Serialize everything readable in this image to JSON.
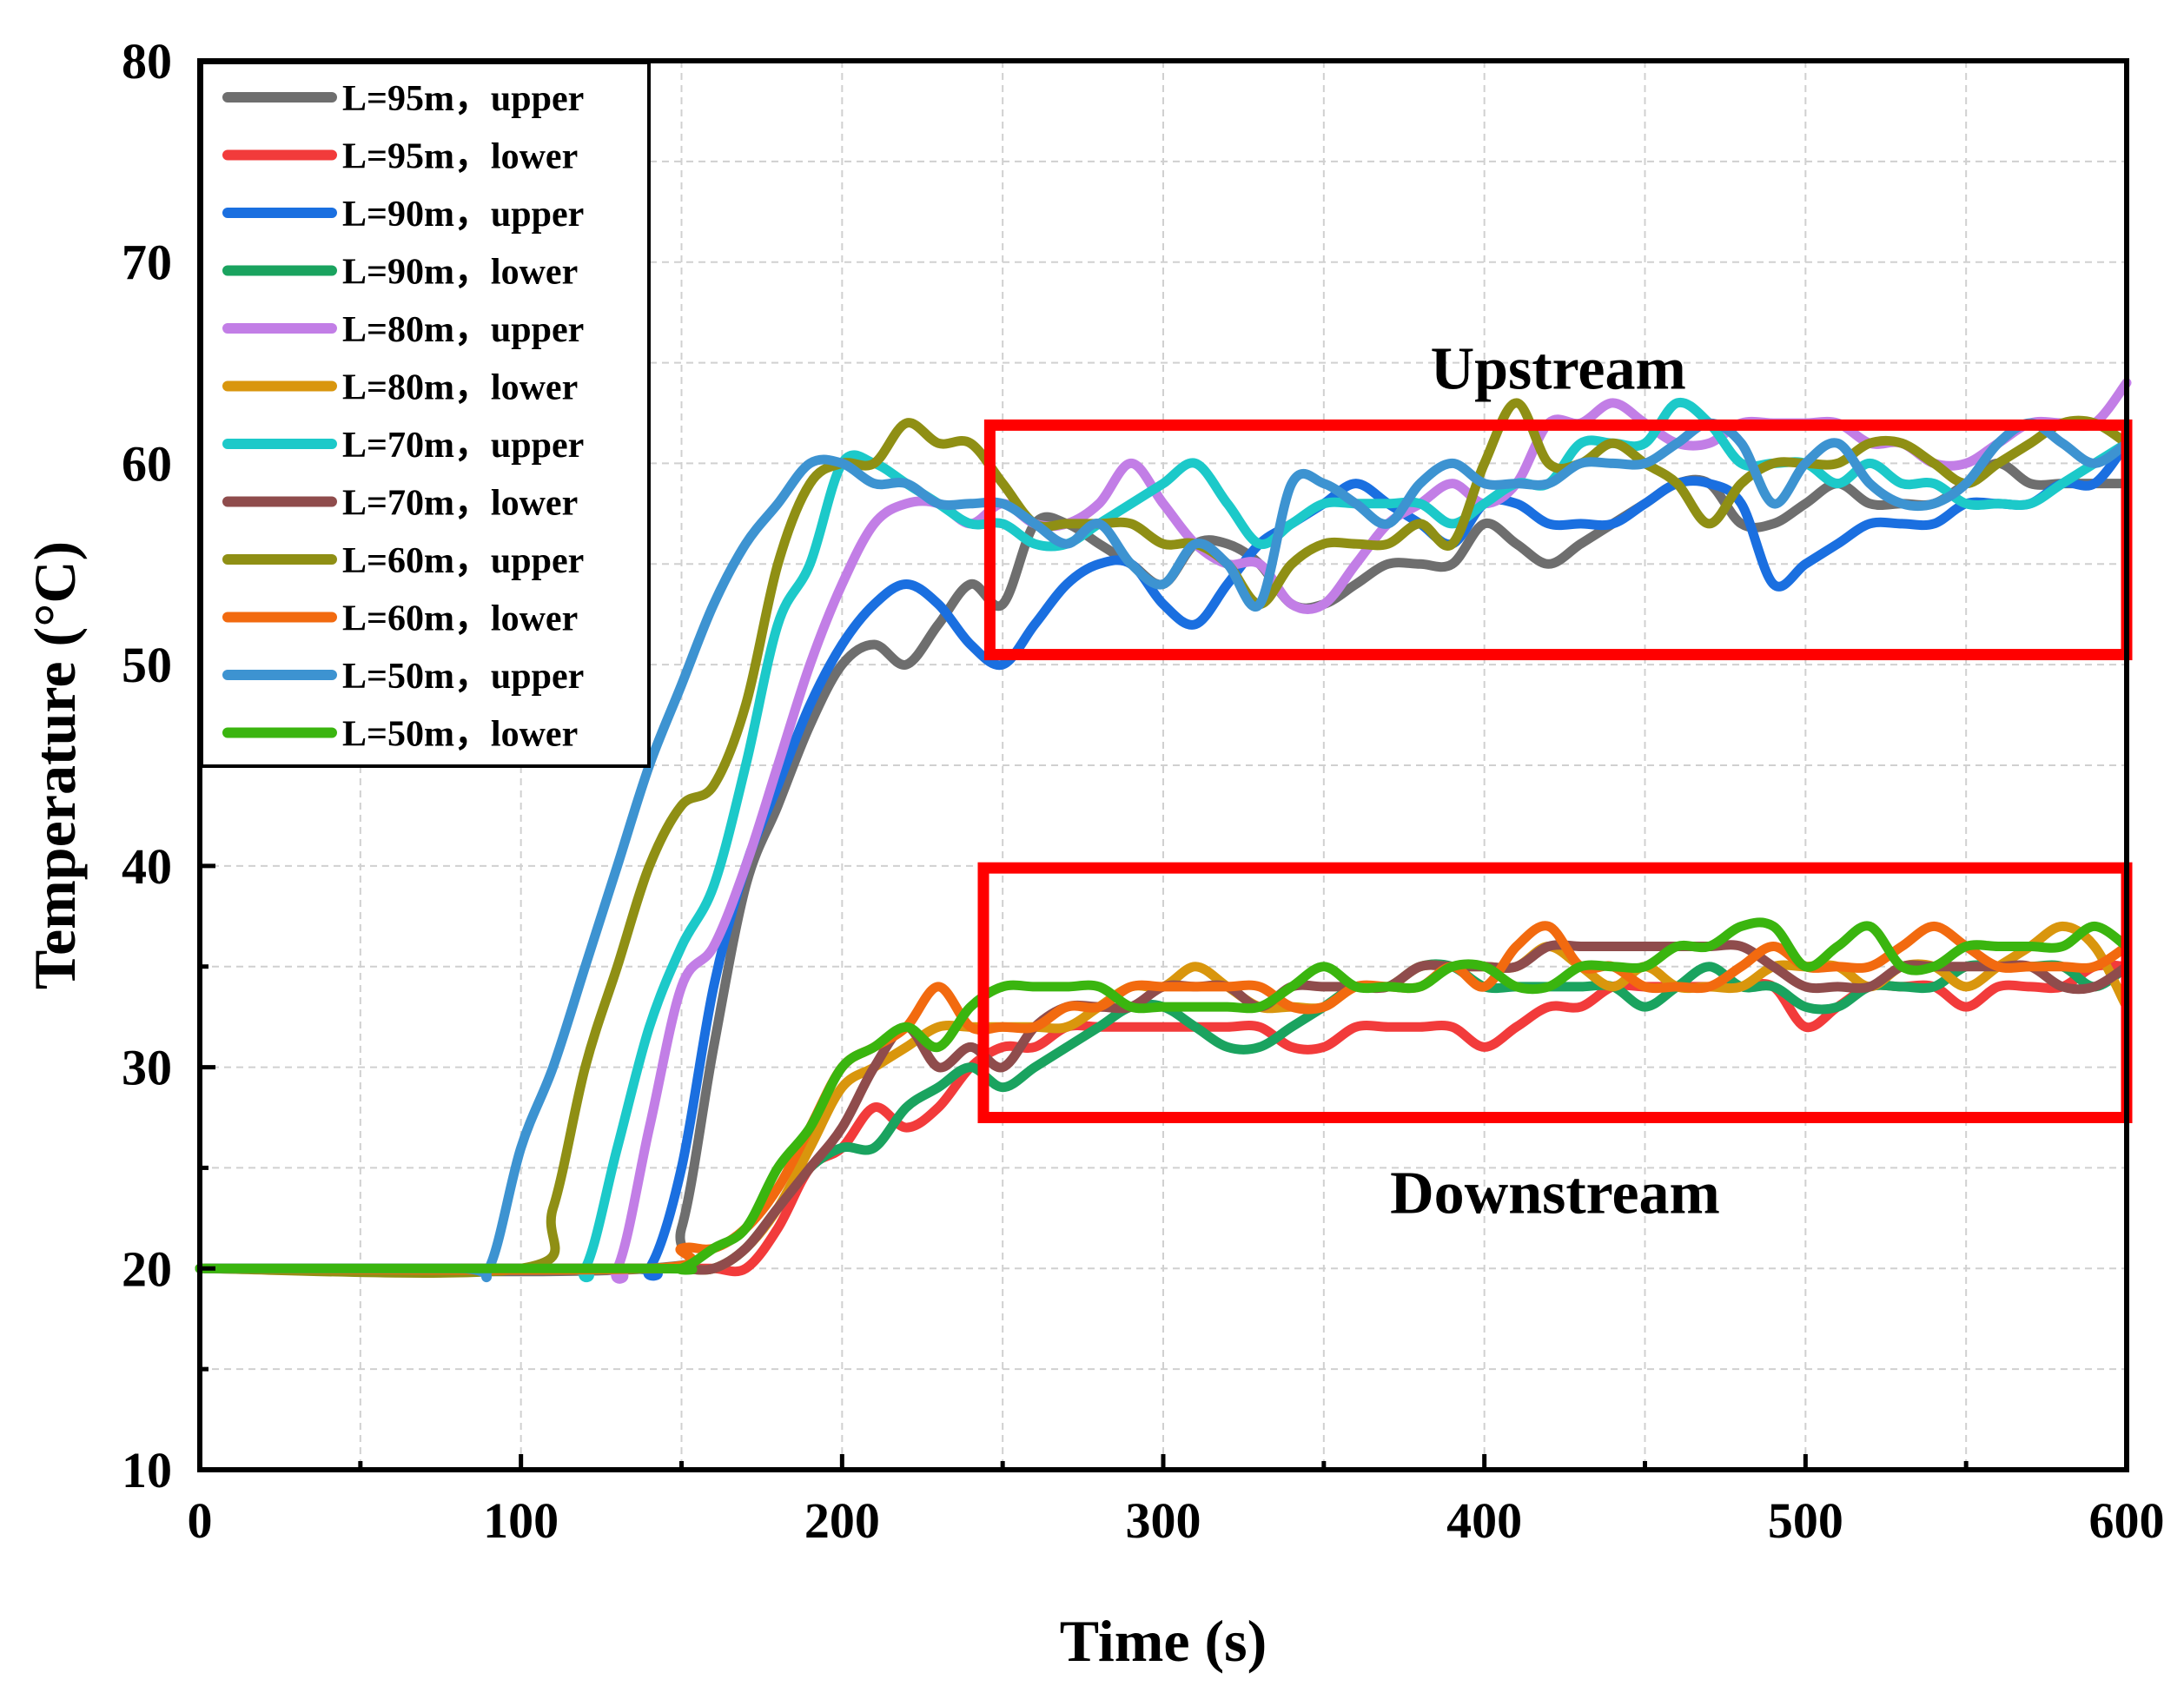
{
  "chart_data": {
    "type": "line",
    "title": "",
    "xlabel": "Time (s)",
    "ylabel": "Temperature (°C)",
    "xlim": [
      0,
      600
    ],
    "ylim": [
      10,
      80
    ],
    "xticks": [
      0,
      100,
      200,
      300,
      400,
      500,
      600
    ],
    "yticks": [
      10,
      20,
      30,
      40,
      50,
      60,
      70,
      80
    ],
    "grid": true,
    "legend_position": "top-left",
    "annotations": [
      {
        "label": "Upstream",
        "box": {
          "x": [
            246,
            600
          ],
          "y": [
            50.5,
            61.9
          ]
        }
      },
      {
        "label": "Downstream",
        "box": {
          "x": [
            244,
            600
          ],
          "y": [
            27.5,
            39.9
          ]
        }
      }
    ],
    "series": [
      {
        "name": "L=95m，upper",
        "color": "#6e6e6e",
        "x": [
          0,
          140,
          150,
          160,
          170,
          180,
          190,
          200,
          210,
          220,
          230,
          240,
          250,
          260,
          270,
          280,
          290,
          300,
          310,
          320,
          330,
          340,
          350,
          360,
          370,
          380,
          390,
          400,
          410,
          420,
          430,
          440,
          450,
          460,
          470,
          480,
          490,
          500,
          510,
          520,
          530,
          540,
          550,
          560,
          570,
          580,
          590,
          600
        ],
        "y": [
          20,
          20,
          22,
          31,
          39,
          43,
          47,
          50,
          51,
          50,
          52,
          54,
          53,
          57,
          57,
          56,
          55,
          54,
          56,
          56,
          55,
          53,
          53,
          54,
          55,
          55,
          55,
          57,
          56,
          55,
          56,
          57,
          58,
          59,
          59,
          57,
          57,
          58,
          59,
          58,
          58,
          58,
          59,
          60,
          59,
          59,
          59,
          59
        ]
      },
      {
        "name": "L=95m，lower",
        "color": "#f23b3b",
        "x": [
          0,
          140,
          150,
          160,
          170,
          180,
          190,
          200,
          210,
          220,
          230,
          240,
          250,
          260,
          270,
          280,
          290,
          300,
          310,
          320,
          330,
          340,
          350,
          360,
          370,
          380,
          390,
          400,
          410,
          420,
          430,
          440,
          450,
          460,
          470,
          480,
          490,
          500,
          510,
          520,
          530,
          540,
          550,
          560,
          570,
          580,
          590,
          600
        ],
        "y": [
          20,
          20,
          20,
          20,
          20,
          22,
          25,
          26,
          28,
          27,
          28,
          30,
          31,
          31,
          32,
          32,
          32,
          32,
          32,
          32,
          32,
          31,
          31,
          32,
          32,
          32,
          32,
          31,
          32,
          33,
          33,
          34,
          34,
          34,
          34,
          34,
          34,
          32,
          33,
          34,
          34,
          34,
          33,
          34,
          34,
          34,
          35,
          35
        ]
      },
      {
        "name": "L=90m，upper",
        "color": "#1a6fe0",
        "x": [
          0,
          130,
          140,
          150,
          160,
          170,
          180,
          190,
          200,
          210,
          220,
          230,
          240,
          250,
          260,
          270,
          280,
          290,
          300,
          310,
          320,
          330,
          340,
          350,
          360,
          370,
          380,
          390,
          400,
          410,
          420,
          430,
          440,
          450,
          460,
          470,
          480,
          490,
          500,
          510,
          520,
          530,
          540,
          550,
          560,
          570,
          580,
          590,
          600
        ],
        "y": [
          20,
          20,
          20,
          25,
          34,
          40,
          44,
          48,
          51,
          53,
          54,
          53,
          51,
          50,
          52,
          54,
          55,
          55,
          53,
          52,
          54,
          56,
          57,
          58,
          59,
          58,
          57,
          56,
          58,
          58,
          57,
          57,
          57,
          58,
          59,
          59,
          58,
          54,
          55,
          56,
          57,
          57,
          57,
          58,
          58,
          58,
          59,
          59,
          61
        ]
      },
      {
        "name": "L=90m，lower",
        "color": "#1aa35f",
        "x": [
          0,
          140,
          150,
          160,
          170,
          180,
          190,
          200,
          210,
          220,
          230,
          240,
          250,
          260,
          270,
          280,
          290,
          300,
          310,
          320,
          330,
          340,
          350,
          360,
          370,
          380,
          390,
          400,
          410,
          420,
          430,
          440,
          450,
          460,
          470,
          480,
          490,
          500,
          510,
          520,
          530,
          540,
          550,
          560,
          570,
          580,
          590,
          600
        ],
        "y": [
          20,
          20,
          20,
          20,
          21,
          23,
          25,
          26,
          26,
          28,
          29,
          30,
          29,
          30,
          31,
          32,
          33,
          33,
          32,
          31,
          31,
          32,
          33,
          34,
          34,
          35,
          35,
          34,
          34,
          34,
          34,
          34,
          33,
          34,
          35,
          34,
          34,
          33,
          33,
          34,
          34,
          34,
          35,
          35,
          35,
          35,
          34,
          35
        ]
      },
      {
        "name": "L=80m，upper",
        "color": "#c27ee6",
        "x": [
          0,
          120,
          130,
          140,
          150,
          160,
          170,
          180,
          190,
          200,
          210,
          220,
          230,
          240,
          250,
          260,
          270,
          280,
          290,
          300,
          310,
          320,
          330,
          340,
          350,
          360,
          370,
          380,
          390,
          400,
          410,
          420,
          430,
          440,
          450,
          460,
          470,
          480,
          490,
          500,
          510,
          520,
          530,
          540,
          550,
          560,
          570,
          580,
          590,
          600
        ],
        "y": [
          20,
          20,
          20,
          27,
          34,
          36,
          40,
          45,
          50,
          54,
          57,
          58,
          58,
          57,
          58,
          57,
          57,
          58,
          60,
          58,
          56,
          55,
          55,
          53,
          53,
          55,
          57,
          58,
          59,
          58,
          59,
          62,
          62,
          63,
          62,
          61,
          61,
          62,
          62,
          62,
          62,
          61,
          61,
          60,
          60,
          61,
          62,
          62,
          62,
          64
        ]
      },
      {
        "name": "L=80m，lower",
        "color": "#d9960d",
        "x": [
          0,
          140,
          150,
          160,
          170,
          180,
          190,
          200,
          210,
          220,
          230,
          240,
          250,
          260,
          270,
          280,
          290,
          300,
          310,
          320,
          330,
          340,
          350,
          360,
          370,
          380,
          390,
          400,
          410,
          420,
          430,
          440,
          450,
          460,
          470,
          480,
          490,
          500,
          510,
          520,
          530,
          540,
          550,
          560,
          570,
          580,
          590,
          600
        ],
        "y": [
          20,
          20,
          20,
          20,
          21,
          23,
          26,
          29,
          30,
          31,
          32,
          32,
          32,
          32,
          32,
          33,
          34,
          34,
          35,
          34,
          33,
          33,
          33,
          34,
          34,
          35,
          35,
          35,
          35,
          36,
          35,
          34,
          35,
          34,
          34,
          34,
          35,
          35,
          35,
          34,
          35,
          35,
          34,
          35,
          36,
          37,
          36,
          33
        ]
      },
      {
        "name": "L=70m，upper",
        "color": "#1cc9c9",
        "x": [
          0,
          110,
          120,
          130,
          140,
          150,
          160,
          170,
          180,
          190,
          200,
          210,
          220,
          230,
          240,
          250,
          260,
          270,
          280,
          290,
          300,
          310,
          320,
          330,
          340,
          350,
          360,
          370,
          380,
          390,
          400,
          410,
          420,
          430,
          440,
          450,
          460,
          470,
          480,
          490,
          500,
          510,
          520,
          530,
          540,
          550,
          560,
          570,
          580,
          590,
          600
        ],
        "y": [
          20,
          20,
          20,
          26,
          32,
          36,
          39,
          45,
          52,
          55,
          60,
          60,
          59,
          58,
          57,
          57,
          56,
          56,
          57,
          58,
          59,
          60,
          58,
          56,
          57,
          58,
          58,
          58,
          58,
          57,
          58,
          59,
          59,
          61,
          61,
          61,
          63,
          62,
          60,
          60,
          60,
          59,
          60,
          59,
          59,
          58,
          58,
          58,
          59,
          60,
          61
        ]
      },
      {
        "name": "L=70m，lower",
        "color": "#8f4c4c",
        "x": [
          0,
          140,
          150,
          160,
          170,
          180,
          190,
          200,
          210,
          220,
          230,
          240,
          250,
          260,
          270,
          280,
          290,
          300,
          310,
          320,
          330,
          340,
          350,
          360,
          370,
          380,
          390,
          400,
          410,
          420,
          430,
          440,
          450,
          460,
          470,
          480,
          490,
          500,
          510,
          520,
          530,
          540,
          550,
          560,
          570,
          580,
          590,
          600
        ],
        "y": [
          20,
          20,
          20,
          20,
          21,
          23,
          25,
          27,
          30,
          32,
          30,
          31,
          30,
          32,
          33,
          33,
          33,
          34,
          34,
          34,
          33,
          34,
          34,
          34,
          34,
          35,
          35,
          35,
          35,
          36,
          36,
          36,
          36,
          36,
          36,
          36,
          35,
          34,
          34,
          34,
          35,
          35,
          35,
          35,
          35,
          34,
          34,
          35
        ]
      },
      {
        "name": "L=60m，upper",
        "color": "#8f8f14",
        "x": [
          0,
          100,
          110,
          120,
          130,
          140,
          150,
          160,
          170,
          180,
          190,
          200,
          210,
          220,
          230,
          240,
          250,
          260,
          270,
          280,
          290,
          300,
          310,
          320,
          330,
          340,
          350,
          360,
          370,
          380,
          390,
          400,
          410,
          420,
          430,
          440,
          450,
          460,
          470,
          480,
          490,
          500,
          510,
          520,
          530,
          540,
          550,
          560,
          570,
          580,
          590,
          600
        ],
        "y": [
          20,
          20,
          23,
          30,
          35,
          40,
          43,
          44,
          48,
          55,
          59,
          60,
          60,
          62,
          61,
          61,
          59,
          57,
          57,
          57,
          57,
          56,
          56,
          55,
          53,
          55,
          56,
          56,
          56,
          57,
          56,
          60,
          63,
          60,
          60,
          61,
          60,
          59,
          57,
          59,
          60,
          60,
          60,
          61,
          61,
          60,
          59,
          60,
          61,
          62,
          62,
          61
        ]
      },
      {
        "name": "L=60m，lower",
        "color": "#f26a0f",
        "x": [
          0,
          140,
          150,
          160,
          170,
          180,
          190,
          200,
          210,
          220,
          230,
          240,
          250,
          260,
          270,
          280,
          290,
          300,
          310,
          320,
          330,
          340,
          350,
          360,
          370,
          380,
          390,
          400,
          410,
          420,
          430,
          440,
          450,
          460,
          470,
          480,
          490,
          500,
          510,
          520,
          530,
          540,
          550,
          560,
          570,
          580,
          590,
          600
        ],
        "y": [
          20,
          20,
          21,
          21,
          22,
          24,
          27,
          30,
          31,
          32,
          34,
          32,
          32,
          32,
          33,
          33,
          34,
          34,
          34,
          34,
          34,
          33,
          33,
          34,
          34,
          34,
          35,
          34,
          36,
          37,
          35,
          35,
          34,
          34,
          34,
          35,
          36,
          35,
          35,
          35,
          36,
          37,
          36,
          35,
          35,
          35,
          35,
          36
        ]
      },
      {
        "name": "L=50m，upper",
        "color": "#3d93d1",
        "x": [
          0,
          80,
          90,
          100,
          110,
          120,
          130,
          140,
          150,
          160,
          170,
          180,
          190,
          200,
          210,
          220,
          230,
          240,
          250,
          260,
          270,
          280,
          290,
          300,
          310,
          320,
          330,
          340,
          350,
          360,
          370,
          380,
          390,
          400,
          410,
          420,
          430,
          440,
          450,
          460,
          470,
          480,
          490,
          500,
          510,
          520,
          530,
          540,
          550,
          560,
          570,
          580,
          590,
          600
        ],
        "y": [
          20,
          20,
          20,
          26,
          30,
          35,
          40,
          45,
          49,
          53,
          56,
          58,
          60,
          60,
          59,
          59,
          58,
          58,
          58,
          57,
          56,
          57,
          55,
          54,
          56,
          55,
          53,
          59,
          59,
          58,
          57,
          59,
          60,
          59,
          59,
          59,
          60,
          60,
          60,
          61,
          62,
          61,
          58,
          60,
          61,
          59,
          58,
          58,
          59,
          61,
          62,
          61,
          60,
          61
        ]
      },
      {
        "name": "L=50m，lower",
        "color": "#3ab50f",
        "x": [
          0,
          140,
          150,
          160,
          170,
          180,
          190,
          200,
          210,
          220,
          230,
          240,
          250,
          260,
          270,
          280,
          290,
          300,
          310,
          320,
          330,
          340,
          350,
          360,
          370,
          380,
          390,
          400,
          410,
          420,
          430,
          440,
          450,
          460,
          470,
          480,
          490,
          500,
          510,
          520,
          530,
          540,
          550,
          560,
          570,
          580,
          590,
          600
        ],
        "y": [
          20,
          20,
          20,
          21,
          22,
          25,
          27,
          30,
          31,
          32,
          31,
          33,
          34,
          34,
          34,
          34,
          33,
          33,
          33,
          33,
          33,
          34,
          35,
          34,
          34,
          34,
          35,
          35,
          34,
          34,
          35,
          35,
          35,
          36,
          36,
          37,
          37,
          35,
          36,
          37,
          35,
          35,
          36,
          36,
          36,
          36,
          37,
          36
        ]
      }
    ]
  }
}
